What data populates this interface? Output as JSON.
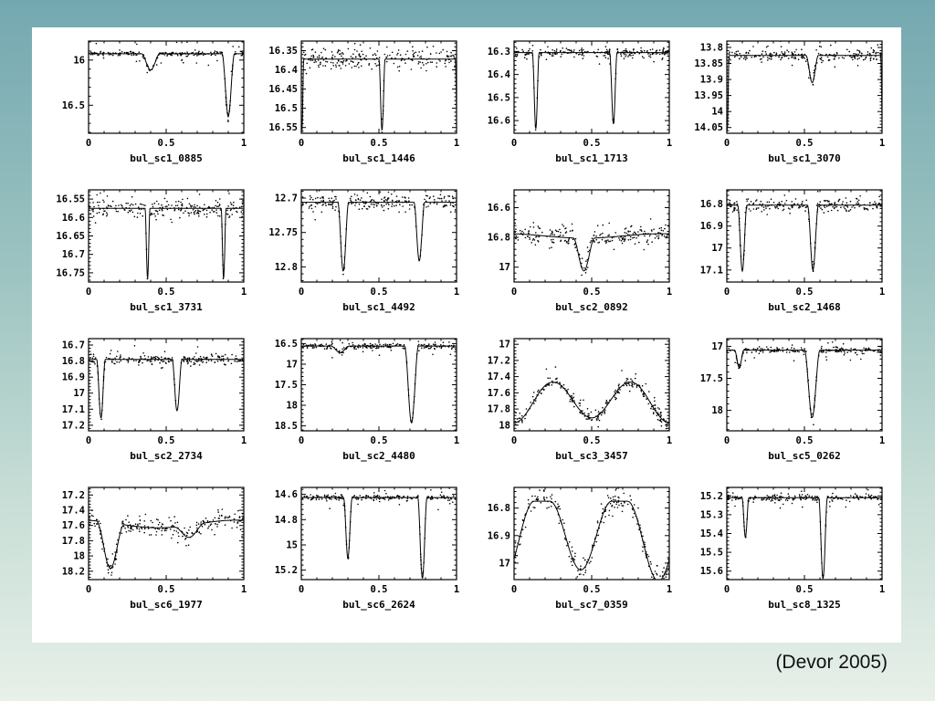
{
  "slide": {
    "citation": "(Devor 2005)"
  },
  "colors": {
    "background_top": "#74a8b0",
    "background_bottom": "#e7f0e9",
    "panel": "#ffffff",
    "ink": "#000000"
  },
  "chart_data": [
    {
      "title": "bul_sc1_0885",
      "type": "scatter+line",
      "xlim": [
        0,
        1
      ],
      "x_ticks": [
        0,
        0.5,
        1
      ],
      "yticks": [
        16,
        16.5
      ],
      "y_top": 15.79,
      "y_bottom": 16.81,
      "model": {
        "base": 15.93,
        "noise": 0.012,
        "dips": [
          {
            "phase": 0.4,
            "halfwidth": 0.06,
            "depth": 0.18
          },
          {
            "phase": 0.9,
            "halfwidth": 0.04,
            "depth": 0.69
          }
        ]
      }
    },
    {
      "title": "bul_sc1_1446",
      "type": "scatter+line",
      "xlim": [
        0,
        1
      ],
      "x_ticks": [
        0,
        0.5,
        1
      ],
      "yticks": [
        16.35,
        16.4,
        16.45,
        16.5,
        16.55
      ],
      "y_top": 16.325,
      "y_bottom": 16.565,
      "model": {
        "base": 16.372,
        "noise": 0.013,
        "dips": [
          {
            "phase": 0.52,
            "halfwidth": 0.02,
            "depth": 0.185
          },
          {
            "phase": 0.004,
            "halfwidth": 0.012,
            "depth": 0.19
          }
        ]
      }
    },
    {
      "title": "bul_sc1_1713",
      "type": "scatter+line",
      "xlim": [
        0,
        1
      ],
      "x_ticks": [
        0,
        0.5,
        1
      ],
      "yticks": [
        16.3,
        16.4,
        16.5,
        16.6
      ],
      "y_top": 16.255,
      "y_bottom": 16.655,
      "model": {
        "base": 16.305,
        "noise": 0.01,
        "dips": [
          {
            "phase": 0.14,
            "halfwidth": 0.022,
            "depth": 0.33
          },
          {
            "phase": 0.64,
            "halfwidth": 0.024,
            "depth": 0.31
          }
        ]
      }
    },
    {
      "title": "bul_sc1_3070",
      "type": "scatter+line",
      "xlim": [
        0,
        1
      ],
      "x_ticks": [
        0,
        0.5,
        1
      ],
      "yticks": [
        13.8,
        13.85,
        13.9,
        13.95,
        14,
        14.05
      ],
      "y_top": 13.78,
      "y_bottom": 14.068,
      "model": {
        "base": 13.825,
        "noise": 0.008,
        "dips": [
          {
            "phase": 0.55,
            "halfwidth": 0.04,
            "depth": 0.085
          },
          {
            "phase": 0.003,
            "halfwidth": 0.012,
            "depth": 0.235
          }
        ]
      }
    },
    {
      "title": "bul_sc1_3731",
      "type": "scatter+line",
      "xlim": [
        0,
        1
      ],
      "x_ticks": [
        0,
        0.5,
        1
      ],
      "yticks": [
        16.55,
        16.6,
        16.65,
        16.7,
        16.75
      ],
      "y_top": 16.525,
      "y_bottom": 16.775,
      "model": {
        "base": 16.575,
        "noise": 0.011,
        "dips": [
          {
            "phase": 0.38,
            "halfwidth": 0.016,
            "depth": 0.19
          },
          {
            "phase": 0.87,
            "halfwidth": 0.016,
            "depth": 0.19
          }
        ]
      }
    },
    {
      "title": "bul_sc1_4492",
      "type": "scatter+line",
      "xlim": [
        0,
        1
      ],
      "x_ticks": [
        0,
        0.5,
        1
      ],
      "yticks": [
        12.7,
        12.75,
        12.8
      ],
      "y_top": 12.688,
      "y_bottom": 12.822,
      "model": {
        "base": 12.706,
        "noise": 0.006,
        "dips": [
          {
            "phase": 0.27,
            "halfwidth": 0.035,
            "depth": 0.1
          },
          {
            "phase": 0.76,
            "halfwidth": 0.035,
            "depth": 0.085
          }
        ]
      }
    },
    {
      "title": "bul_sc2_0892",
      "type": "scatter+line",
      "xlim": [
        0,
        1
      ],
      "x_ticks": [
        0,
        0.5,
        1
      ],
      "yticks": [
        16.6,
        16.8,
        17
      ],
      "y_top": 16.48,
      "y_bottom": 17.1,
      "model": {
        "base": 16.79,
        "noise": 0.028,
        "wave": 0.015,
        "dips": [
          {
            "phase": 0.45,
            "halfwidth": 0.07,
            "depth": 0.22
          }
        ]
      }
    },
    {
      "title": "bul_sc2_1468",
      "type": "scatter+line",
      "xlim": [
        0,
        1
      ],
      "x_ticks": [
        0,
        0.5,
        1
      ],
      "yticks": [
        16.8,
        16.9,
        17,
        17.1
      ],
      "y_top": 16.735,
      "y_bottom": 17.155,
      "model": {
        "base": 16.805,
        "noise": 0.014,
        "dips": [
          {
            "phase": 0.1,
            "halfwidth": 0.03,
            "depth": 0.3
          },
          {
            "phase": 0.555,
            "halfwidth": 0.035,
            "depth": 0.295
          }
        ]
      }
    },
    {
      "title": "bul_sc2_2734",
      "type": "scatter+line",
      "xlim": [
        0,
        1
      ],
      "x_ticks": [
        0,
        0.5,
        1
      ],
      "yticks": [
        16.7,
        16.8,
        16.9,
        17,
        17.1,
        17.2
      ],
      "y_top": 16.66,
      "y_bottom": 17.235,
      "model": {
        "base": 16.79,
        "noise": 0.014,
        "dips": [
          {
            "phase": 0.08,
            "halfwidth": 0.028,
            "depth": 0.365
          },
          {
            "phase": 0.57,
            "halfwidth": 0.032,
            "depth": 0.32
          }
        ]
      }
    },
    {
      "title": "bul_sc2_4480",
      "type": "scatter+line",
      "xlim": [
        0,
        1
      ],
      "x_ticks": [
        0,
        0.5,
        1
      ],
      "yticks": [
        16.5,
        17,
        17.5,
        18,
        18.5
      ],
      "y_top": 16.38,
      "y_bottom": 18.62,
      "model": {
        "base": 16.56,
        "noise": 0.035,
        "dips": [
          {
            "phase": 0.25,
            "halfwidth": 0.06,
            "depth": 0.16
          },
          {
            "phase": 0.71,
            "halfwidth": 0.045,
            "depth": 1.86
          }
        ]
      }
    },
    {
      "title": "bul_sc3_3457",
      "type": "scatter+line",
      "xlim": [
        0,
        1
      ],
      "x_ticks": [
        0,
        0.5,
        1
      ],
      "yticks": [
        17,
        17.2,
        17.4,
        17.6,
        17.8,
        18
      ],
      "y_top": 16.93,
      "y_bottom": 18.07,
      "model": {
        "base": 17.47,
        "noise": 0.04,
        "dips": [
          {
            "phase": 0.0,
            "halfwidth": 0.245,
            "depth": 0.5
          },
          {
            "phase": 0.5,
            "halfwidth": 0.245,
            "depth": 0.44
          }
        ]
      }
    },
    {
      "title": "bul_sc5_0262",
      "type": "scatter+line",
      "xlim": [
        0,
        1
      ],
      "x_ticks": [
        0,
        0.5,
        1
      ],
      "yticks": [
        17,
        17.5,
        18
      ],
      "y_top": 16.88,
      "y_bottom": 18.32,
      "model": {
        "base": 17.06,
        "noise": 0.022,
        "dips": [
          {
            "phase": 0.08,
            "halfwidth": 0.03,
            "depth": 0.27
          },
          {
            "phase": 0.55,
            "halfwidth": 0.05,
            "depth": 1.05
          }
        ]
      }
    },
    {
      "title": "bul_sc6_1977",
      "type": "scatter+line",
      "xlim": [
        0,
        1
      ],
      "x_ticks": [
        0,
        0.5,
        1
      ],
      "yticks": [
        17.2,
        17.4,
        17.6,
        17.8,
        18,
        18.2
      ],
      "y_top": 17.1,
      "y_bottom": 18.31,
      "model": {
        "base": 17.58,
        "noise": 0.05,
        "wave": 0.05,
        "dips": [
          {
            "phase": 0.14,
            "halfwidth": 0.09,
            "depth": 0.6
          },
          {
            "phase": 0.65,
            "halfwidth": 0.1,
            "depth": 0.16
          }
        ]
      }
    },
    {
      "title": "bul_sc6_2624",
      "type": "scatter+line",
      "xlim": [
        0,
        1
      ],
      "x_ticks": [
        0,
        0.5,
        1
      ],
      "yticks": [
        14.6,
        14.8,
        15,
        15.2
      ],
      "y_top": 14.545,
      "y_bottom": 15.275,
      "model": {
        "base": 14.625,
        "noise": 0.01,
        "dips": [
          {
            "phase": 0.3,
            "halfwidth": 0.028,
            "depth": 0.48
          },
          {
            "phase": 0.78,
            "halfwidth": 0.03,
            "depth": 0.64
          }
        ]
      }
    },
    {
      "title": "bul_sc7_0359",
      "type": "scatter+line",
      "xlim": [
        0,
        1
      ],
      "x_ticks": [
        0,
        0.5,
        1
      ],
      "yticks": [
        16.8,
        16.9,
        17
      ],
      "y_top": 16.725,
      "y_bottom": 17.06,
      "model": {
        "base": 16.775,
        "noise": 0.018,
        "dips": [
          {
            "phase": 0.43,
            "halfwidth": 0.2,
            "depth": 0.25
          },
          {
            "phase": 0.93,
            "halfwidth": 0.2,
            "depth": 0.29
          }
        ]
      }
    },
    {
      "title": "bul_sc8_1325",
      "type": "scatter+line",
      "xlim": [
        0,
        1
      ],
      "x_ticks": [
        0,
        0.5,
        1
      ],
      "yticks": [
        15.2,
        15.3,
        15.4,
        15.5,
        15.6
      ],
      "y_top": 15.155,
      "y_bottom": 15.645,
      "model": {
        "base": 15.21,
        "noise": 0.008,
        "dips": [
          {
            "phase": 0.12,
            "halfwidth": 0.022,
            "depth": 0.21
          },
          {
            "phase": 0.62,
            "halfwidth": 0.028,
            "depth": 0.43
          }
        ]
      }
    }
  ]
}
